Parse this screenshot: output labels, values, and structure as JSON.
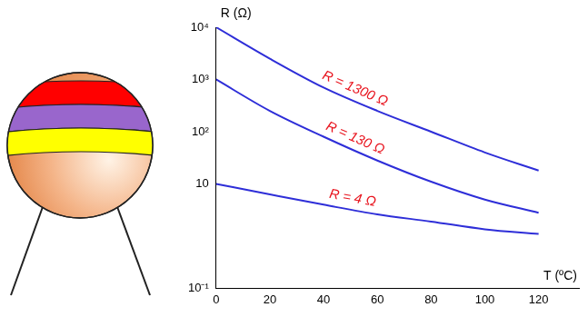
{
  "chart_data": {
    "type": "line",
    "x_label": "T (ºC)",
    "y_label": "R (Ω)",
    "x": [
      0,
      20,
      40,
      60,
      80,
      100,
      120
    ],
    "series": [
      {
        "name": "R = 1300 Ω",
        "color": "#2e2ed8",
        "values": [
          10000,
          2500,
          700,
          250,
          100,
          40,
          18
        ]
      },
      {
        "name": "R = 130 Ω",
        "color": "#2e2ed8",
        "values": [
          1000,
          250,
          80,
          28,
          11,
          5,
          2.8
        ]
      },
      {
        "name": "R = 4 Ω",
        "color": "#2e2ed8",
        "values": [
          10,
          6.3,
          4,
          2.6,
          1.9,
          1.35,
          1.1
        ]
      }
    ],
    "xlim": [
      0,
      135
    ],
    "xticks": [
      0,
      20,
      40,
      60,
      80,
      100,
      120
    ],
    "ylim": [
      0.1,
      10000
    ],
    "yticks": [
      {
        "value": 0.1,
        "label": "10⁻¹"
      },
      10,
      {
        "value": 100,
        "label": "10²"
      },
      {
        "value": 1000,
        "label": "10³"
      },
      {
        "value": 10000,
        "label": "10⁴"
      }
    ],
    "log": "y",
    "grid": false
  }
}
